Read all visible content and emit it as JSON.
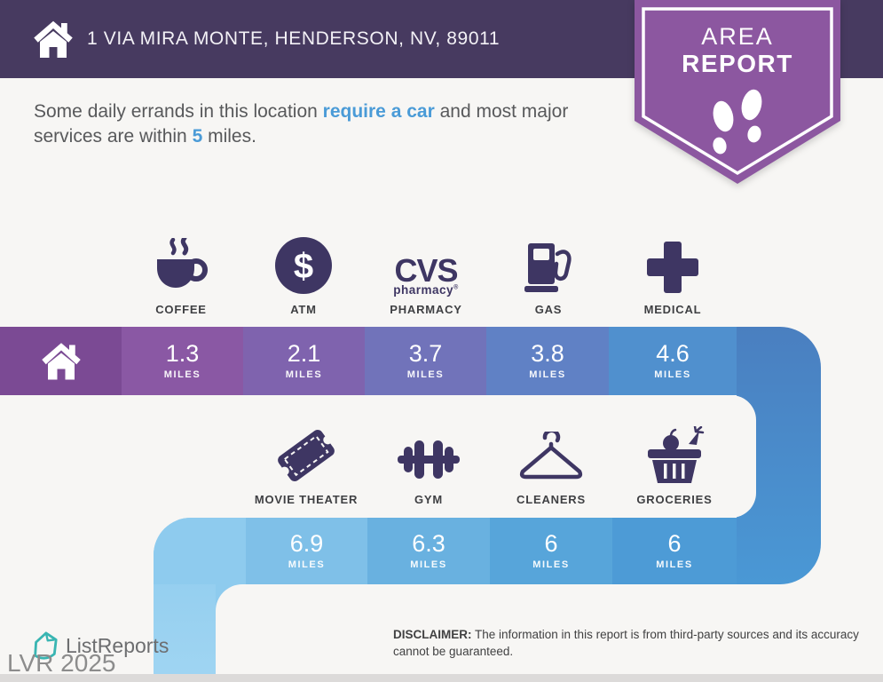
{
  "header": {
    "address": "1 VIA MIRA MONTE, HENDERSON, NV, 89011"
  },
  "badge": {
    "line1": "AREA",
    "line2": "REPORT",
    "color": "#8c57a0"
  },
  "intro": {
    "part1": "Some daily errands in this location ",
    "highlight1": "require a car",
    "part2": " and most major services are within ",
    "highlight2": "5",
    "part3": " miles."
  },
  "services_row1": {
    "origin_color": "#7b4a94",
    "items": [
      {
        "label": "COFFEE",
        "icon": "coffee-icon",
        "value": "1.3",
        "unit": "MILES",
        "color": "#8a58a4"
      },
      {
        "label": "ATM",
        "icon": "atm-icon",
        "value": "2.1",
        "unit": "MILES",
        "color": "#7f63ae",
        "symbol": "$"
      },
      {
        "label": "PHARMACY",
        "icon": "cvs-pharmacy-icon",
        "value": "3.7",
        "unit": "MILES",
        "color": "#7173ba",
        "logo_text": "CVS",
        "logo_sub": "pharmacy"
      },
      {
        "label": "GAS",
        "icon": "gas-pump-icon",
        "value": "3.8",
        "unit": "MILES",
        "color": "#6081c5"
      },
      {
        "label": "MEDICAL",
        "icon": "medical-cross-icon",
        "value": "4.6",
        "unit": "MILES",
        "color": "#5090ce"
      }
    ]
  },
  "services_row2": {
    "corner_color": "#8ecbee",
    "items": [
      {
        "label": "MOVIE THEATER",
        "icon": "movie-ticket-icon",
        "value": "6.9",
        "unit": "MILES",
        "color": "#7fc0e8"
      },
      {
        "label": "GYM",
        "icon": "dumbbell-icon",
        "value": "6.3",
        "unit": "MILES",
        "color": "#69b1e0"
      },
      {
        "label": "CLEANERS",
        "icon": "hanger-icon",
        "value": "6",
        "unit": "MILES",
        "color": "#57a5da"
      },
      {
        "label": "GROCERIES",
        "icon": "grocery-basket-icon",
        "value": "6",
        "unit": "MILES",
        "color": "#4d9bd6"
      }
    ]
  },
  "footer": {
    "brand": "ListReports",
    "watermark": "LVR 2025",
    "disclaimer_label": "DISCLAIMER:",
    "disclaimer_text": " The information in this report is from third-party sources and its accuracy cannot be guaranteed."
  },
  "colors": {
    "background": "#f7f6f4",
    "header_bar": "#473a60",
    "badge_purple": "#8c57a0",
    "accent_blue": "#4a9bd7",
    "icon_indigo": "#3e3663",
    "right_column_top": "#4a7fc0",
    "right_column_bottom": "#4a98d5",
    "left_column_top": "#8ecbee",
    "left_column_bottom": "#a0d5f2"
  }
}
